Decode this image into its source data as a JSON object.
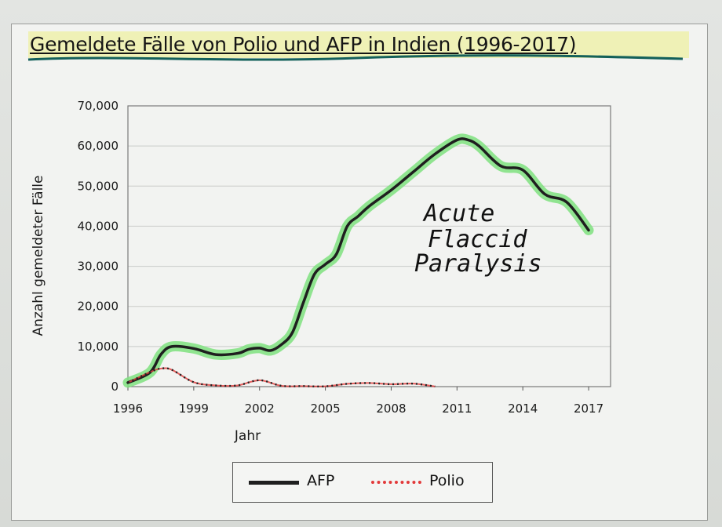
{
  "page": {
    "title": "Gemeldete Fälle von Polio und AFP in Indien (1996-2017)"
  },
  "chart_data": {
    "type": "line",
    "title": "Gemeldete Fälle von Polio und AFP in Indien (1996-2017)",
    "xlabel": "Jahr",
    "ylabel": "Anzahl gemeldeter Fälle",
    "xlim": [
      1996,
      2018
    ],
    "ylim": [
      0,
      70000
    ],
    "x_ticks": [
      "1996",
      "1999",
      "2002",
      "2005",
      "2008",
      "2011",
      "2014",
      "2017"
    ],
    "y_ticks": [
      "0",
      "10,000",
      "20,000",
      "30,000",
      "40,000",
      "50,000",
      "60,000",
      "70,000"
    ],
    "grid": true,
    "legend_position": "bottom",
    "annotation": [
      "Acute",
      "Flaccid",
      "Paralysis"
    ],
    "series": [
      {
        "name": "AFP",
        "color": "#1f1f1f",
        "highlight": "#7fe07f",
        "style": "solid",
        "x": [
          1996,
          1997,
          1997.5,
          1998,
          1999,
          2000,
          2001,
          2001.5,
          2002,
          2002.5,
          2003,
          2003.5,
          2004,
          2004.5,
          2005,
          2005.5,
          2006,
          2006.5,
          2007,
          2008,
          2009,
          2010,
          2011,
          2011.5,
          2012,
          2013,
          2014,
          2015,
          2016,
          2017
        ],
        "y": [
          1000,
          3500,
          8000,
          10000,
          9500,
          8000,
          8300,
          9300,
          9600,
          9000,
          10500,
          13500,
          21000,
          28000,
          30500,
          33000,
          40000,
          42500,
          45000,
          49000,
          53500,
          58000,
          61500,
          61500,
          60000,
          55000,
          54000,
          48000,
          46000,
          39000
        ]
      },
      {
        "name": "Polio",
        "color": "#e23a3a",
        "style": "dotted",
        "x": [
          1996,
          1997,
          1997.5,
          1998,
          1999,
          2000,
          2001,
          2002,
          2003,
          2004,
          2005,
          2006,
          2007,
          2008,
          2009,
          2010
        ],
        "y": [
          1000,
          3600,
          4500,
          4200,
          1100,
          300,
          300,
          1600,
          200,
          130,
          70,
          700,
          900,
          600,
          750,
          40
        ]
      }
    ]
  }
}
